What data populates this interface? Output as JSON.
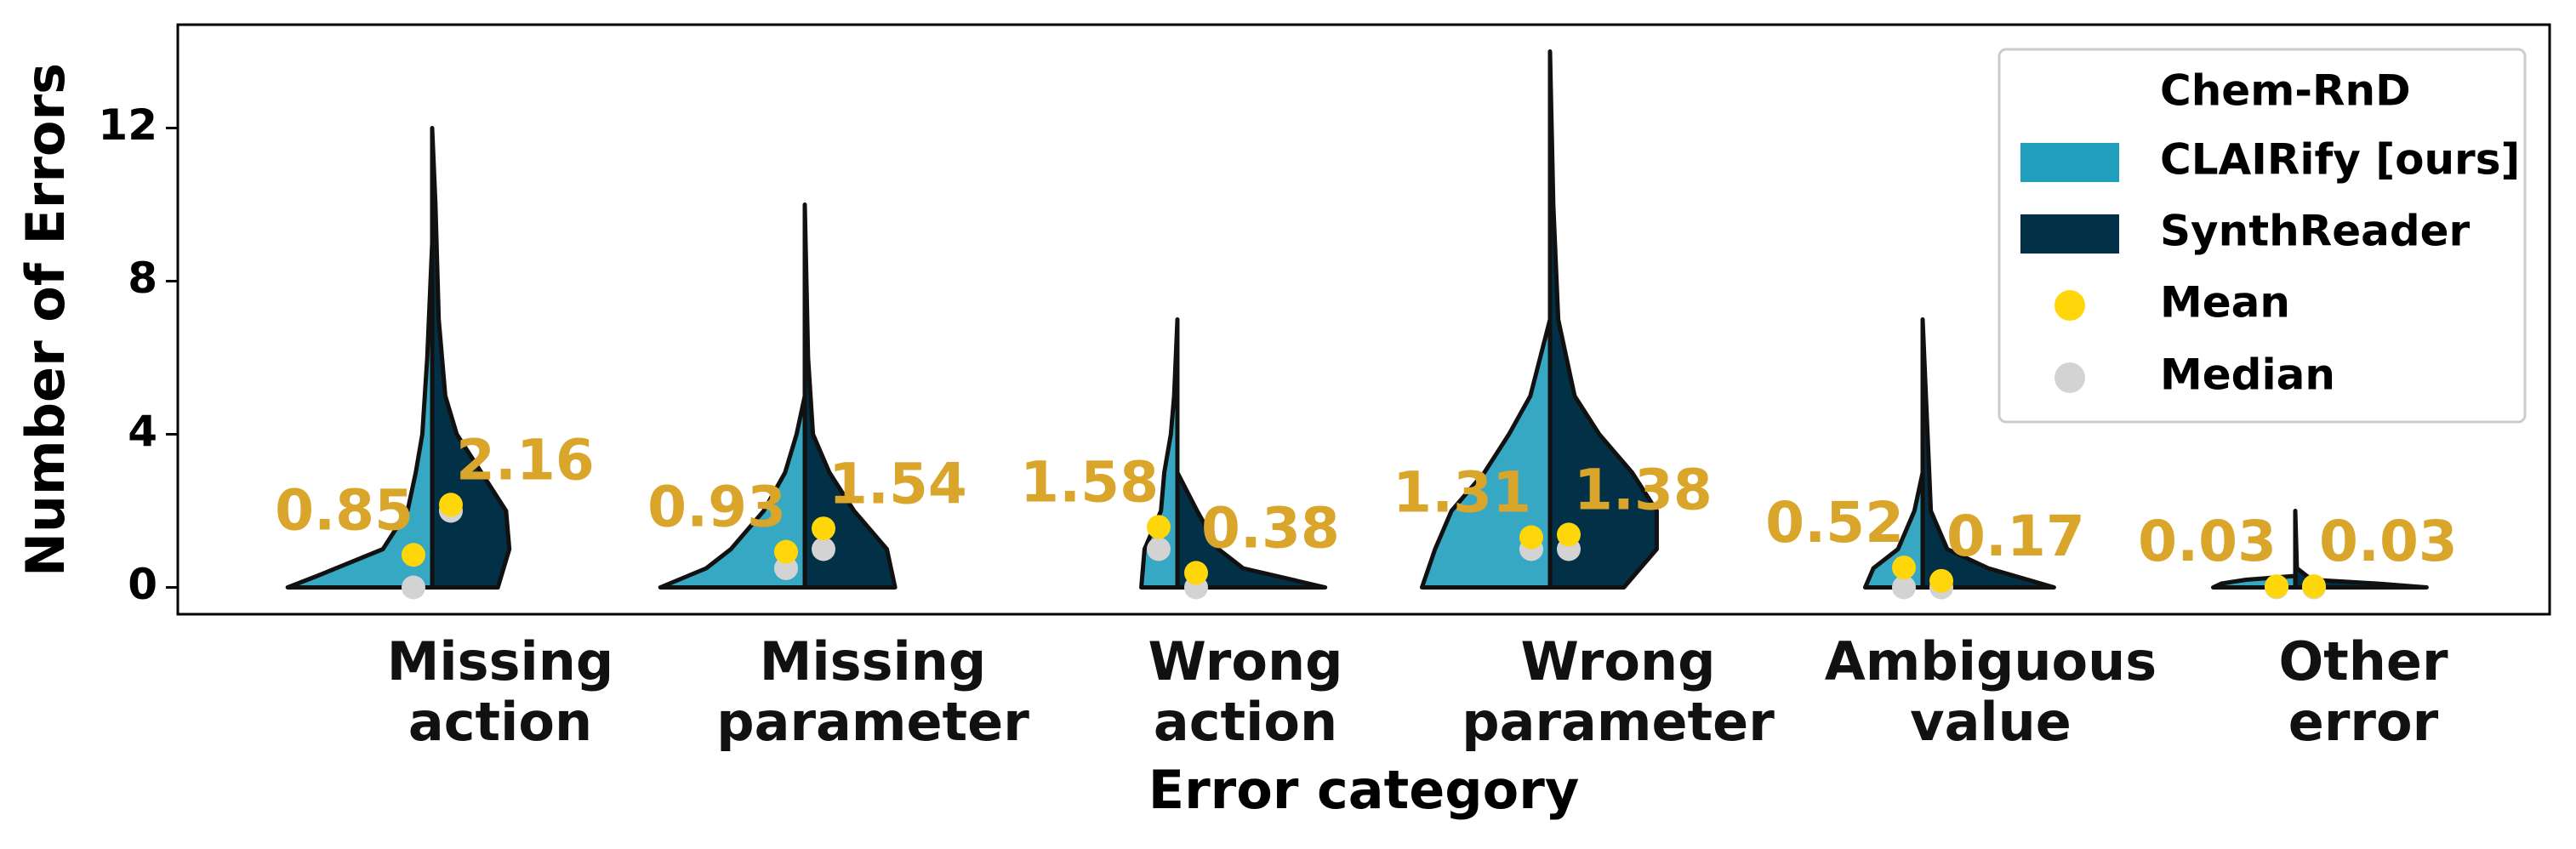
{
  "chart_data": {
    "type": "violin",
    "xlabel": "Error category",
    "ylabel": "Number of Errors",
    "categories": [
      "Missing action",
      "Missing parameter",
      "Wrong action",
      "Wrong parameter",
      "Ambiguous value",
      "Other error"
    ],
    "ylim": [
      -0.7,
      14.7
    ],
    "yticks": [
      0,
      4,
      8,
      12
    ],
    "grid": false,
    "legend_title": "Chem-RnD",
    "legend_position": "upper right",
    "mean_label": "Mean",
    "mean_color": "#ffd60a",
    "median_label": "Median",
    "median_color": "#d3d3d3",
    "annotation_color": "#d9a52b",
    "series": [
      {
        "name": "CLAIRify [ours]",
        "color": "#219ebc",
        "side": "left",
        "means": [
          0.85,
          0.93,
          1.58,
          1.31,
          0.52,
          0.03
        ],
        "medians": [
          0,
          0.5,
          1,
          1,
          0,
          0
        ],
        "violins": [
          {
            "y": [
              0,
              0.3,
              1,
              2,
              3,
              4,
              6,
              9
            ],
            "density": [
              0.88,
              0.7,
              0.3,
              0.15,
              0.1,
              0.06,
              0.03,
              0
            ]
          },
          {
            "y": [
              0,
              0.5,
              1,
              2,
              3,
              4,
              5
            ],
            "density": [
              0.88,
              0.6,
              0.45,
              0.25,
              0.12,
              0.05,
              0
            ]
          },
          {
            "y": [
              0,
              1,
              2,
              3,
              4,
              5,
              7
            ],
            "density": [
              0.22,
              0.2,
              0.1,
              0.08,
              0.04,
              0.02,
              0
            ]
          },
          {
            "y": [
              0,
              1,
              2,
              3,
              4,
              5,
              7
            ],
            "density": [
              0.78,
              0.7,
              0.6,
              0.4,
              0.25,
              0.12,
              0
            ]
          },
          {
            "y": [
              0,
              0.5,
              1,
              2,
              3
            ],
            "density": [
              0.35,
              0.3,
              0.15,
              0.05,
              0
            ]
          },
          {
            "y": [
              0,
              0.1,
              0.2,
              0.3
            ],
            "density": [
              0.5,
              0.45,
              0.3,
              0
            ]
          }
        ]
      },
      {
        "name": "SynthReader",
        "color": "#023047",
        "side": "right",
        "means": [
          2.16,
          1.54,
          0.38,
          1.38,
          0.17,
          0.03
        ],
        "medians": [
          2,
          1,
          0,
          1,
          0,
          0
        ],
        "violins": [
          {
            "y": [
              0,
              1,
              2,
              3,
              4,
              5,
              7,
              10,
              12
            ],
            "density": [
              0.4,
              0.47,
              0.45,
              0.3,
              0.15,
              0.08,
              0.04,
              0.02,
              0
            ]
          },
          {
            "y": [
              0,
              1,
              2,
              3,
              4,
              6,
              10
            ],
            "density": [
              0.55,
              0.5,
              0.3,
              0.15,
              0.05,
              0.02,
              0
            ]
          },
          {
            "y": [
              0,
              0.5,
              1,
              2,
              3
            ],
            "density": [
              0.9,
              0.4,
              0.25,
              0.12,
              0
            ]
          },
          {
            "y": [
              0,
              1,
              2,
              3,
              4,
              5,
              7,
              10,
              14
            ],
            "density": [
              0.45,
              0.65,
              0.65,
              0.5,
              0.3,
              0.15,
              0.05,
              0.02,
              0
            ]
          },
          {
            "y": [
              0,
              0.5,
              1,
              2,
              4,
              7
            ],
            "density": [
              0.8,
              0.4,
              0.15,
              0.05,
              0.03,
              0
            ]
          },
          {
            "y": [
              0,
              0.1,
              0.2,
              0.5,
              2
            ],
            "density": [
              0.8,
              0.5,
              0.1,
              0.01,
              0
            ]
          }
        ]
      }
    ]
  }
}
